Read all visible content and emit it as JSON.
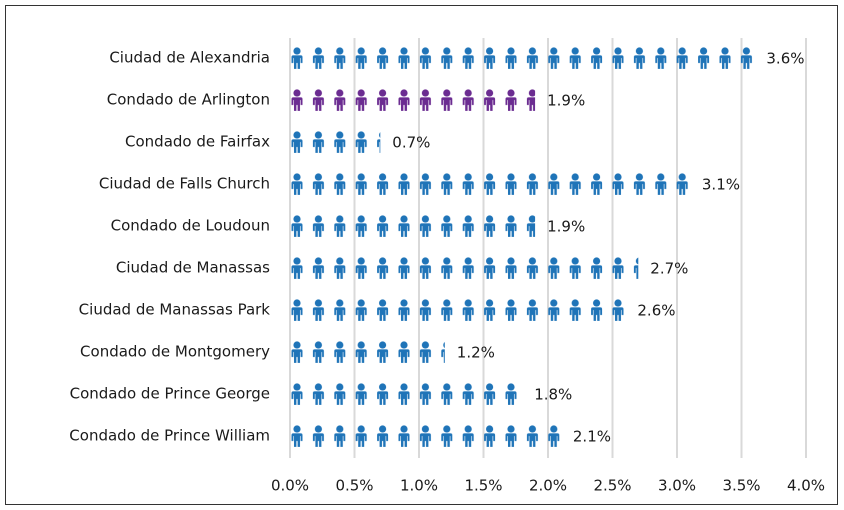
{
  "chart_data": {
    "type": "pictograph",
    "categories": [
      "Ciudad de Alexandria",
      "Condado de Arlington",
      "Condado de Fairfax",
      "Ciudad de Falls Church",
      "Condado de Loudoun",
      "Ciudad de Manassas",
      "Ciudad de Manassas Park",
      "Condado de Montgomery",
      "Condado de Prince George",
      "Condado de Prince William"
    ],
    "values": [
      3.6,
      1.9,
      0.7,
      3.1,
      1.9,
      2.7,
      2.6,
      1.2,
      1.8,
      2.1
    ],
    "value_labels": [
      "3.6%",
      "1.9%",
      "0.7%",
      "3.1%",
      "1.9%",
      "2.7%",
      "2.6%",
      "1.2%",
      "1.8%",
      "2.1%"
    ],
    "colors": [
      "#1f74b8",
      "#6b2c91",
      "#1f74b8",
      "#1f74b8",
      "#1f74b8",
      "#1f74b8",
      "#1f74b8",
      "#1f74b8",
      "#1f74b8",
      "#1f74b8"
    ],
    "xlim": [
      0,
      4
    ],
    "xticks": [
      {
        "value": 0,
        "label": "0.0%"
      },
      {
        "value": 0.5,
        "label": "0.5%"
      },
      {
        "value": 1,
        "label": "1.0%"
      },
      {
        "value": 1.5,
        "label": "1.5%"
      },
      {
        "value": 2,
        "label": "2.0%"
      },
      {
        "value": 2.5,
        "label": "2.5%"
      },
      {
        "value": 3,
        "label": "3.0%"
      },
      {
        "value": 3.5,
        "label": "3.5%"
      },
      {
        "value": 4,
        "label": "4.0%"
      }
    ],
    "grid": true
  }
}
